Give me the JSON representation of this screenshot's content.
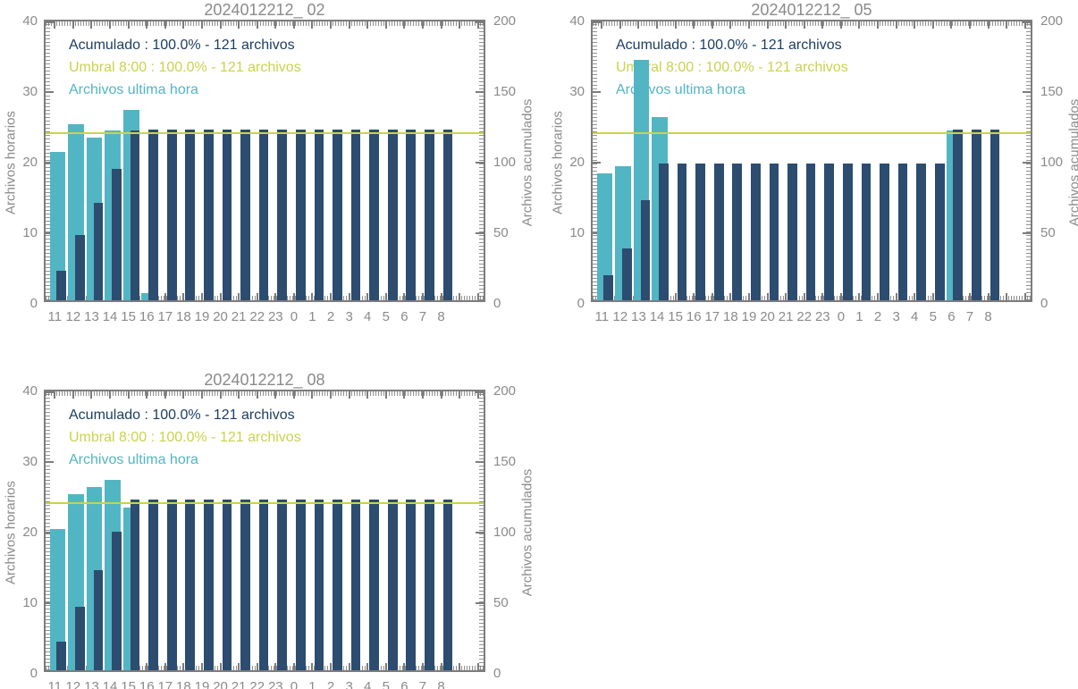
{
  "page": {
    "background": "#ffffff"
  },
  "colors": {
    "teal": "#52b5c3",
    "navy": "#2c4c70",
    "navy_text": "#1d3e60",
    "threshold": "#c9d34c",
    "axis": "#7c7c7c",
    "label_gray": "#8a8a8a",
    "title_gray": "#8a8a8a"
  },
  "chart_data": [
    {
      "type": "bar",
      "title": "2024012212_ 02",
      "ylabel_left": "Archivos horarios",
      "ylabel_right": "Archivos acumulados",
      "ylim_left": [
        0,
        40
      ],
      "ylim_right": [
        0,
        200
      ],
      "yticks_left": [
        0,
        10,
        20,
        30,
        40
      ],
      "yticks_right": [
        0,
        50,
        100,
        150,
        200
      ],
      "categories": [
        "11",
        "12",
        "13",
        "14",
        "15",
        "16",
        "17",
        "18",
        "19",
        "20",
        "21",
        "22",
        "23",
        "0",
        "1",
        "2",
        "3",
        "4",
        "5",
        "6",
        "7",
        "8"
      ],
      "legend": [
        {
          "label": "Acumulado : 100.0% - 121 archivos",
          "color_key": "navy_text"
        },
        {
          "label": "Umbral 8:00 : 100.0% - 121 archivos",
          "color_key": "threshold"
        },
        {
          "label": "Archivos ultima hora",
          "color_key": "teal"
        }
      ],
      "threshold_line": {
        "name": "Umbral 8:00",
        "value": 121,
        "axis": "right",
        "color_key": "threshold"
      },
      "series": [
        {
          "name": "Archivos ultima hora",
          "axis": "left",
          "color_key": "teal",
          "values": [
            21,
            25,
            23,
            24,
            27,
            1,
            0,
            0,
            0,
            0,
            0,
            0,
            0,
            0,
            0,
            0,
            0,
            0,
            0,
            0,
            0,
            0
          ]
        },
        {
          "name": "Acumulado",
          "axis": "right",
          "color_key": "navy",
          "values": [
            21,
            46,
            69,
            93,
            120,
            121,
            121,
            121,
            121,
            121,
            121,
            121,
            121,
            121,
            121,
            121,
            121,
            121,
            121,
            121,
            121,
            121
          ]
        }
      ]
    },
    {
      "type": "bar",
      "title": "2024012212_ 05",
      "ylabel_left": "Archivos horarios",
      "ylabel_right": "Archivos acumulados",
      "ylim_left": [
        0,
        40
      ],
      "ylim_right": [
        0,
        200
      ],
      "yticks_left": [
        0,
        10,
        20,
        30,
        40
      ],
      "yticks_right": [
        0,
        50,
        100,
        150,
        200
      ],
      "categories": [
        "11",
        "12",
        "13",
        "14",
        "15",
        "16",
        "17",
        "18",
        "19",
        "20",
        "21",
        "22",
        "23",
        "0",
        "1",
        "2",
        "3",
        "4",
        "5",
        "6",
        "7",
        "8"
      ],
      "legend": [
        {
          "label": "Acumulado : 100.0% - 121 archivos",
          "color_key": "navy_text"
        },
        {
          "label": "Umbral 8:00 : 100.0% - 121 archivos",
          "color_key": "threshold"
        },
        {
          "label": "Archivos ultima hora",
          "color_key": "teal"
        }
      ],
      "threshold_line": {
        "name": "Umbral 8:00",
        "value": 121,
        "axis": "right",
        "color_key": "threshold"
      },
      "series": [
        {
          "name": "Archivos ultima hora",
          "axis": "left",
          "color_key": "teal",
          "values": [
            18,
            19,
            34,
            26,
            0,
            0,
            0,
            0,
            0,
            0,
            0,
            0,
            0,
            0,
            0,
            0,
            0,
            0,
            0,
            24,
            0,
            0
          ]
        },
        {
          "name": "Acumulado",
          "axis": "right",
          "color_key": "navy",
          "values": [
            18,
            37,
            71,
            97,
            97,
            97,
            97,
            97,
            97,
            97,
            97,
            97,
            97,
            97,
            97,
            97,
            97,
            97,
            97,
            121,
            121,
            121
          ]
        }
      ]
    },
    {
      "type": "bar",
      "title": "2024012212_ 08",
      "ylabel_left": "Archivos horarios",
      "ylabel_right": "Archivos acumulados",
      "ylim_left": [
        0,
        40
      ],
      "ylim_right": [
        0,
        200
      ],
      "yticks_left": [
        0,
        10,
        20,
        30,
        40
      ],
      "yticks_right": [
        0,
        50,
        100,
        150,
        200
      ],
      "categories": [
        "11",
        "12",
        "13",
        "14",
        "15",
        "16",
        "17",
        "18",
        "19",
        "20",
        "21",
        "22",
        "23",
        "0",
        "1",
        "2",
        "3",
        "4",
        "5",
        "6",
        "7",
        "8"
      ],
      "legend": [
        {
          "label": "Acumulado : 100.0% - 121 archivos",
          "color_key": "navy_text"
        },
        {
          "label": "Umbral 8:00 : 100.0% - 121 archivos",
          "color_key": "threshold"
        },
        {
          "label": "Archivos ultima hora",
          "color_key": "teal"
        }
      ],
      "threshold_line": {
        "name": "Umbral 8:00",
        "value": 121,
        "axis": "right",
        "color_key": "threshold"
      },
      "series": [
        {
          "name": "Archivos ultima hora",
          "axis": "left",
          "color_key": "teal",
          "values": [
            20,
            25,
            26,
            27,
            23,
            0,
            0,
            0,
            0,
            0,
            0,
            0,
            0,
            0,
            0,
            0,
            0,
            0,
            0,
            0,
            0,
            0
          ]
        },
        {
          "name": "Acumulado",
          "axis": "right",
          "color_key": "navy",
          "values": [
            20,
            45,
            71,
            98,
            121,
            121,
            121,
            121,
            121,
            121,
            121,
            121,
            121,
            121,
            121,
            121,
            121,
            121,
            121,
            121,
            121,
            121
          ]
        }
      ]
    }
  ]
}
